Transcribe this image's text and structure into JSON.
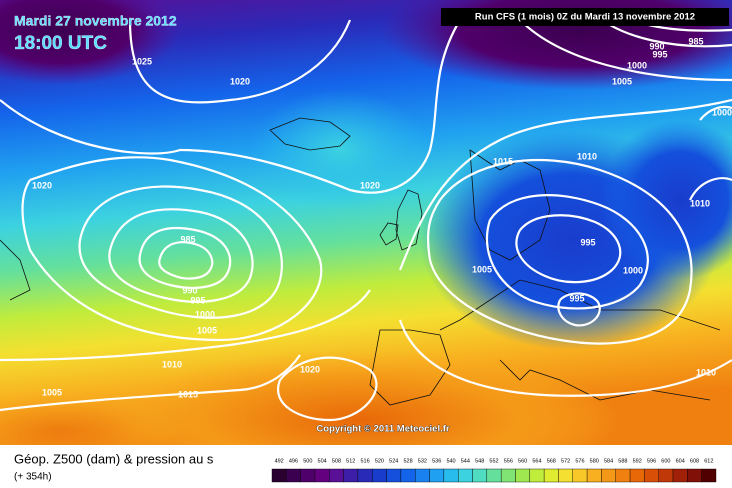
{
  "header": {
    "date": "Mardi 27 novembre 2012",
    "time": "18:00 UTC",
    "run": "Run CFS (1 mois) 0Z du Mardi 13 novembre 2012"
  },
  "isobar_labels": [
    "1025",
    "1020",
    "1020",
    "1020",
    "985",
    "990",
    "995",
    "1000",
    "1005",
    "1010",
    "1015",
    "1005",
    "1020",
    "1015",
    "1010",
    "995",
    "1000",
    "1005",
    "995",
    "1010",
    "1010",
    "1000",
    "1005",
    "1000",
    "995",
    "990",
    "985"
  ],
  "copyright": "Copyright © 2011 Meteociel.fr",
  "footer": {
    "caption": "Géop. Z500 (dam) & pression au s",
    "lead": "(+ 354h)"
  },
  "legend": {
    "values": [
      492,
      496,
      500,
      504,
      508,
      512,
      516,
      520,
      524,
      528,
      532,
      536,
      540,
      544,
      548,
      552,
      556,
      560,
      564,
      568,
      572,
      576,
      580,
      584,
      588,
      592,
      596,
      600,
      604,
      608,
      612
    ],
    "colors": [
      "#2a0030",
      "#3c0050",
      "#50006a",
      "#640080",
      "#5a1096",
      "#3c1ea8",
      "#2a2ab8",
      "#1a3ccc",
      "#1450dc",
      "#1464ea",
      "#1a82f0",
      "#20a0f0",
      "#28bcec",
      "#3cd2e0",
      "#50dcc0",
      "#64e09c",
      "#80e474",
      "#a0e850",
      "#c0ec3c",
      "#e0ec30",
      "#f4e030",
      "#f8c828",
      "#f8b020",
      "#f49818",
      "#f08010",
      "#e86808",
      "#d85008",
      "#c03808",
      "#a02008",
      "#801008",
      "#500000"
    ]
  }
}
